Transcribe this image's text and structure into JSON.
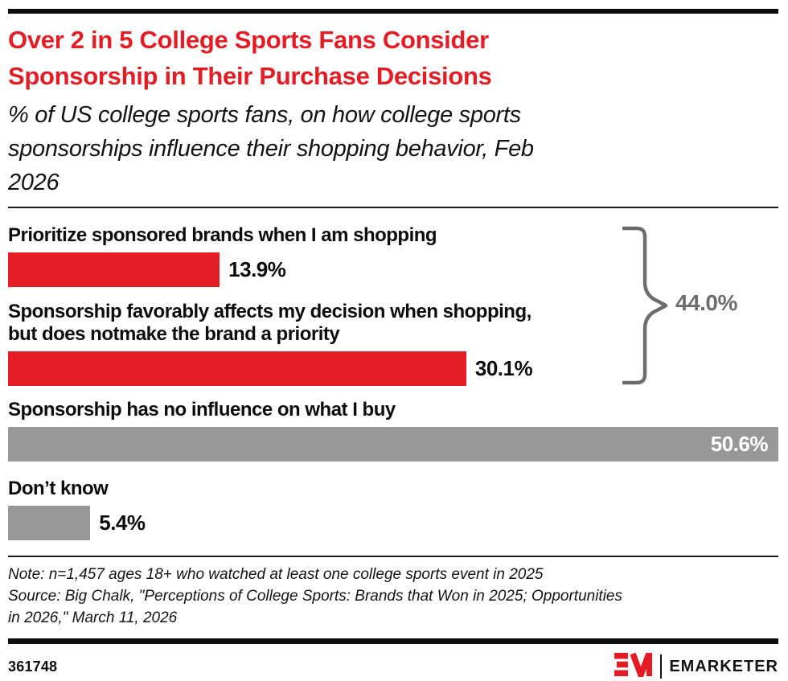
{
  "header": {
    "title": "Over 2 in 5 College Sports Fans Consider\nSponsorship in Their Purchase Decisions",
    "subtitle": "% of US college sports fans, on how college sports\nsponsorships influence their shopping behavior, Feb\n2026"
  },
  "chart_data": {
    "type": "bar",
    "orientation": "horizontal",
    "title": "Over 2 in 5 College Sports Fans Consider Sponsorship in Their Purchase Decisions",
    "subtitle": "% of US college sports fans, on how college sports sponsorships influence their shopping behavior, Feb 2026",
    "xlabel": "",
    "ylabel": "",
    "xmax": 50.6,
    "grid": false,
    "legend": false,
    "bars": [
      {
        "label": "Prioritize sponsored brands when I am shopping",
        "value": 13.9,
        "value_label": "13.9%",
        "color": "#e41d25",
        "value_placement": "outside"
      },
      {
        "label": "Sponsorship favorably affects my decision when shopping,\nbut does notmake the brand a priority",
        "value": 30.1,
        "value_label": "30.1%",
        "color": "#e41d25",
        "value_placement": "outside"
      },
      {
        "label": "Sponsorship has no influence on what I buy",
        "value": 50.6,
        "value_label": "50.6%",
        "color": "#989898",
        "value_placement": "inside"
      },
      {
        "label": "Don’t know",
        "value": 5.4,
        "value_label": "5.4%",
        "color": "#989898",
        "value_placement": "outside"
      }
    ],
    "annotation": {
      "label": "44.0%",
      "value": 44.0,
      "spans_bars": [
        0,
        1
      ],
      "shape": "right-brace",
      "color": "#6d6d6d"
    }
  },
  "colors": {
    "accent_red": "#e41d25",
    "bar_gray": "#989898",
    "annotation_gray": "#6d6d6d",
    "text_black": "#0d0d0d"
  },
  "footer": {
    "note": "Note: n=1,457 ages 18+ who watched at least one college sports event in 2025",
    "source": "Source: Big Chalk, \"Perceptions of College Sports: Brands that Won in 2025; Opportunities\nin 2026,\" March 11, 2026",
    "chart_id": "361748",
    "brand_name": "EMARKETER"
  }
}
